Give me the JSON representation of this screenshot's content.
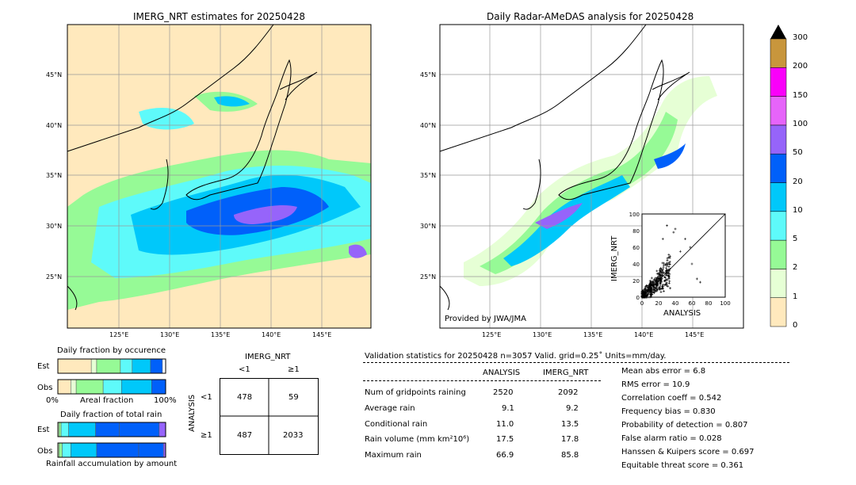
{
  "colors": {
    "land": "#ffe9bd",
    "levels": [
      "#ffe9bd",
      "#e6ffd5",
      "#96fa96",
      "#5efafa",
      "#00c8fa",
      "#0060fa",
      "#9664fa",
      "#e664fa",
      "#fa00fa",
      "#c8963c"
    ]
  },
  "left_map": {
    "title": "IMERG_NRT estimates for 20250428",
    "lat_labels": [
      "45°N",
      "40°N",
      "35°N",
      "30°N",
      "25°N"
    ],
    "lon_labels": [
      "125°E",
      "130°E",
      "135°E",
      "140°E",
      "145°E"
    ]
  },
  "right_map": {
    "title": "Daily Radar-AMeDAS analysis for 20250428",
    "lat_labels": [
      "45°N",
      "40°N",
      "35°N",
      "30°N",
      "25°N"
    ],
    "lon_labels": [
      "125°E",
      "130°E",
      "135°E",
      "140°E",
      "145°E"
    ],
    "credit": "Provided by JWA/JMA"
  },
  "colorbar": {
    "labels": [
      "0",
      "1",
      "2",
      "5",
      "10",
      "20",
      "50",
      "100",
      "150",
      "200",
      "300"
    ]
  },
  "chart_data": [
    {
      "type": "scatter",
      "name_ref": "inset",
      "xlabel": "ANALYSIS",
      "ylabel": "IMERG_NRT",
      "xlim": [
        0,
        100
      ],
      "ylim": [
        0,
        100
      ],
      "xticks": [
        "0",
        "20",
        "40",
        "60",
        "80",
        "100"
      ],
      "yticks": [
        "0",
        "20",
        "40",
        "60",
        "80",
        "100"
      ],
      "note": "dense cluster of points at ANALYSIS 0-35, IMERG_NRT 0-40 with outliers up to 86"
    },
    {
      "type": "bar",
      "title": "Daily fraction by occurence",
      "categories": [
        "Est",
        "Obs"
      ],
      "xlabel": "Areal fraction",
      "x_left": "0%",
      "x_right": "100%",
      "series": [
        {
          "category": "Est",
          "segments": [
            0.31,
            0.05,
            0.22,
            0.11,
            0.17,
            0.11
          ]
        },
        {
          "category": "Obs",
          "segments": [
            0.12,
            0.05,
            0.25,
            0.17,
            0.28,
            0.13
          ]
        }
      ]
    },
    {
      "type": "bar",
      "title": "Daily fraction of total rain",
      "categories": [
        "Est",
        "Obs"
      ],
      "xlabel": "Rainfall accumulation by amount",
      "series": [
        {
          "category": "Est",
          "segments": [
            0.01,
            0.02,
            0.07,
            0.25,
            0.22,
            0.37,
            0.06
          ]
        },
        {
          "category": "Obs",
          "segments": [
            0.01,
            0.03,
            0.08,
            0.24,
            0.39,
            0.23,
            0.02
          ]
        }
      ]
    },
    {
      "type": "table",
      "title": "IMERG_NRT",
      "col_labels": [
        "<1",
        "≥1"
      ],
      "row_axis": "ANALYSIS",
      "row_labels": [
        "<1",
        "≥1"
      ],
      "values": [
        [
          478,
          59
        ],
        [
          487,
          2033
        ]
      ]
    }
  ],
  "validation": {
    "header": "Validation statistics for 20250428  n=3057 Valid. grid=0.25˚ Units=mm/day.",
    "col_analysis": "ANALYSIS",
    "col_imerg": "IMERG_NRT",
    "rows": [
      {
        "label": "Num of gridpoints raining",
        "a": "2520",
        "b": "2092"
      },
      {
        "label": "Average rain",
        "a": "9.1",
        "b": "9.2"
      },
      {
        "label": "Conditional rain",
        "a": "11.0",
        "b": "13.5"
      },
      {
        "label": "Rain volume (mm km²10⁶)",
        "a": "17.5",
        "b": "17.8"
      },
      {
        "label": "Maximum rain",
        "a": "66.9",
        "b": "85.8"
      }
    ],
    "scores": [
      "Mean abs error =    6.8",
      "RMS error =   10.9",
      "Correlation coeff =  0.542",
      "Frequency bias =  0.830",
      "Probability of detection =  0.807",
      "False alarm ratio =  0.028",
      "Hanssen & Kuipers score =  0.697",
      "Equitable threat score =  0.361"
    ]
  }
}
